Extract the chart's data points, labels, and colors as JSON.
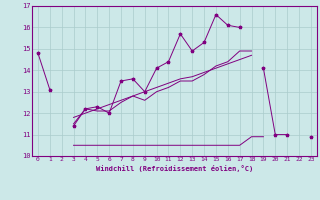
{
  "x": [
    0,
    1,
    2,
    3,
    4,
    5,
    6,
    7,
    8,
    9,
    10,
    11,
    12,
    13,
    14,
    15,
    16,
    17,
    18,
    19,
    20,
    21,
    22,
    23
  ],
  "main_y": [
    14.8,
    13.1,
    null,
    11.4,
    12.2,
    12.3,
    12.0,
    13.5,
    13.6,
    13.0,
    14.1,
    14.4,
    15.7,
    14.9,
    15.3,
    16.6,
    16.1,
    16.0,
    null,
    14.1,
    11.0,
    11.0,
    null,
    10.9
  ],
  "line2_y": [
    null,
    null,
    null,
    11.5,
    12.2,
    12.1,
    12.1,
    12.5,
    12.8,
    12.6,
    13.0,
    13.2,
    13.5,
    13.5,
    13.8,
    14.2,
    14.4,
    14.9,
    14.9,
    null,
    null,
    null,
    null,
    null
  ],
  "line3_y": [
    null,
    null,
    null,
    10.5,
    10.5,
    10.5,
    10.5,
    10.5,
    10.5,
    10.5,
    10.5,
    10.5,
    10.5,
    10.5,
    10.5,
    10.5,
    10.5,
    10.5,
    10.9,
    10.9,
    null,
    null,
    null,
    null
  ],
  "line4_y": [
    null,
    null,
    null,
    11.8,
    12.0,
    12.2,
    12.4,
    12.6,
    12.8,
    13.0,
    13.2,
    13.4,
    13.6,
    13.7,
    13.9,
    14.1,
    14.3,
    14.5,
    14.7,
    null,
    null,
    null,
    null,
    null
  ],
  "color": "#800080",
  "bg_color": "#cce8e8",
  "grid_color": "#aacccc",
  "xlabel": "Windchill (Refroidissement éolien,°C)",
  "xlim": [
    -0.5,
    23.5
  ],
  "ylim": [
    10,
    17
  ],
  "xticks": [
    0,
    1,
    2,
    3,
    4,
    5,
    6,
    7,
    8,
    9,
    10,
    11,
    12,
    13,
    14,
    15,
    16,
    17,
    18,
    19,
    20,
    21,
    22,
    23
  ],
  "yticks": [
    10,
    11,
    12,
    13,
    14,
    15,
    16,
    17
  ]
}
